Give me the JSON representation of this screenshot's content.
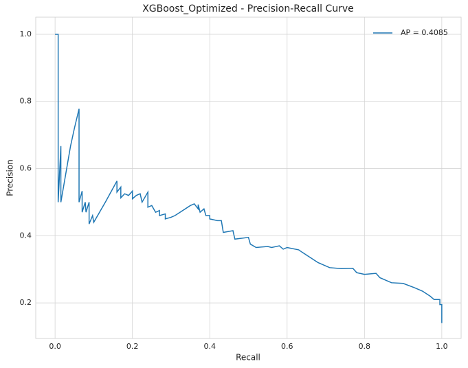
{
  "chart_data": {
    "type": "line",
    "title": "XGBoost_Optimized - Precision-Recall Curve",
    "xlabel": "Recall",
    "ylabel": "Precision",
    "xlim": [
      -0.05,
      1.05
    ],
    "ylim": [
      0.094,
      1.051
    ],
    "xticks": [
      {
        "value": 0,
        "label": "0.0"
      },
      0.2,
      0.4,
      0.6,
      0.8,
      {
        "value": 1,
        "label": "1.0"
      }
    ],
    "yticks": [
      0.2,
      0.4,
      0.6,
      0.8,
      {
        "value": 1,
        "label": "1.0"
      }
    ],
    "grid": true,
    "legend": "upper right",
    "series": [
      {
        "name": "AP = 0.4085",
        "color": "#1f77b4",
        "x": [
          0,
          0.008,
          0.008,
          0.015,
          0.015,
          0.03,
          0.04,
          0.05,
          0.062,
          0.062,
          0.07,
          0.07,
          0.078,
          0.08,
          0.088,
          0.088,
          0.097,
          0.1,
          0.13,
          0.16,
          0.16,
          0.17,
          0.17,
          0.18,
          0.19,
          0.2,
          0.2,
          0.21,
          0.22,
          0.225,
          0.24,
          0.24,
          0.25,
          0.26,
          0.27,
          0.27,
          0.285,
          0.285,
          0.3,
          0.31,
          0.35,
          0.36,
          0.37,
          0.37,
          0.375,
          0.385,
          0.39,
          0.4,
          0.4,
          0.42,
          0.43,
          0.435,
          0.46,
          0.465,
          0.5,
          0.505,
          0.52,
          0.55,
          0.56,
          0.58,
          0.59,
          0.6,
          0.63,
          0.64,
          0.66,
          0.68,
          0.71,
          0.74,
          0.77,
          0.78,
          0.8,
          0.83,
          0.84,
          0.87,
          0.9,
          0.93,
          0.95,
          0.97,
          0.98,
          0.995,
          0.995,
          1,
          1
        ],
        "values": [
          1,
          1,
          0.5,
          0.667,
          0.5,
          0.6,
          0.667,
          0.72,
          0.778,
          0.5,
          0.533,
          0.47,
          0.5,
          0.47,
          0.5,
          0.435,
          0.46,
          0.44,
          0.5,
          0.563,
          0.53,
          0.545,
          0.513,
          0.525,
          0.52,
          0.533,
          0.51,
          0.52,
          0.525,
          0.5,
          0.53,
          0.485,
          0.49,
          0.47,
          0.475,
          0.46,
          0.465,
          0.45,
          0.455,
          0.46,
          0.49,
          0.495,
          0.48,
          0.493,
          0.47,
          0.48,
          0.46,
          0.46,
          0.45,
          0.445,
          0.445,
          0.41,
          0.415,
          0.39,
          0.395,
          0.375,
          0.365,
          0.368,
          0.365,
          0.37,
          0.36,
          0.365,
          0.358,
          0.35,
          0.335,
          0.32,
          0.305,
          0.302,
          0.303,
          0.29,
          0.285,
          0.288,
          0.275,
          0.26,
          0.258,
          0.245,
          0.235,
          0.22,
          0.21,
          0.21,
          0.195,
          0.195,
          0.14
        ]
      }
    ]
  }
}
